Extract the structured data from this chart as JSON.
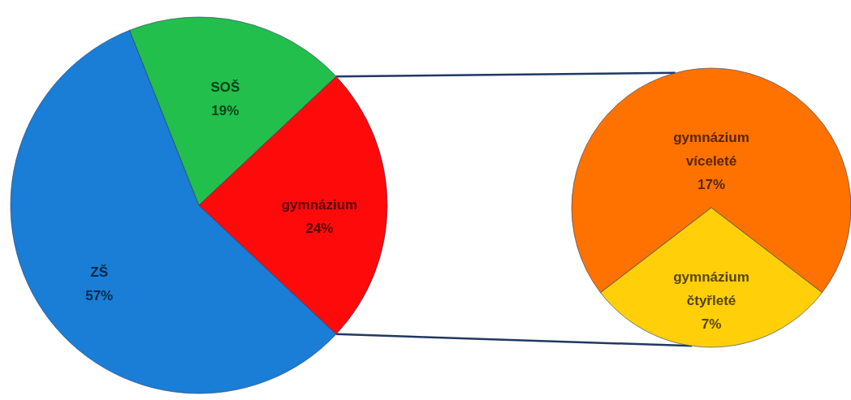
{
  "chart_data": [
    {
      "type": "pie",
      "categories": [
        "ZŠ",
        "SOŠ",
        "gymnázium"
      ],
      "values": [
        57,
        19,
        24
      ],
      "colors": [
        "#1a7dd6",
        "#22bf4c",
        "#ff0a0a"
      ],
      "value_labels": [
        "57%",
        "19%",
        "24%"
      ]
    },
    {
      "type": "pie",
      "categories": [
        "gymnázium víceleté",
        "gymnázium čtyřleté"
      ],
      "values": [
        17,
        7
      ],
      "colors": [
        "#ff7200",
        "#ffcf0a"
      ],
      "value_labels": [
        "17%",
        "7%"
      ]
    }
  ]
}
